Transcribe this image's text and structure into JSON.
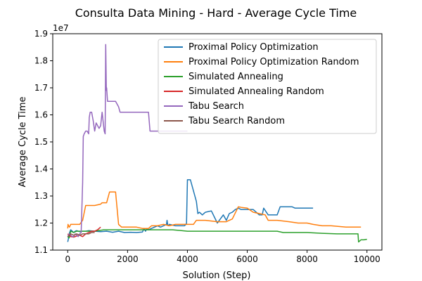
{
  "chart_data": {
    "type": "line",
    "title": "Consulta Data Mining - Hard - Average Cycle Time",
    "xlabel": "Solution (Step)",
    "ylabel": "Average Cycle Time",
    "y_offset_label": "1e7",
    "xlim": [
      -500,
      10500
    ],
    "ylim": [
      11000000,
      19000000
    ],
    "xticks": [
      0,
      2000,
      4000,
      6000,
      8000,
      10000
    ],
    "xtick_labels": [
      "0",
      "2000",
      "4000",
      "6000",
      "8000",
      "10000"
    ],
    "yticks": [
      11000000,
      12000000,
      13000000,
      14000000,
      15000000,
      16000000,
      17000000,
      18000000,
      19000000
    ],
    "ytick_labels": [
      "1.1",
      "1.2",
      "1.3",
      "1.4",
      "1.5",
      "1.6",
      "1.7",
      "1.8",
      "1.9"
    ],
    "grid": false,
    "legend_position": "upper right",
    "series": [
      {
        "name": "Proximal Policy Optimization",
        "color": "#1f77b4",
        "x": [
          0,
          20,
          50,
          80,
          100,
          150,
          200,
          250,
          300,
          400,
          500,
          600,
          700,
          900,
          1100,
          1300,
          1500,
          1700,
          1900,
          2100,
          2300,
          2500,
          2550,
          2600,
          2650,
          2700,
          2800,
          2900,
          3000,
          3100,
          3200,
          3300,
          3320,
          3340,
          3360,
          3400,
          3600,
          3800,
          3900,
          3950,
          3970,
          4000,
          4050,
          4100,
          4300,
          4350,
          4400,
          4500,
          4600,
          4800,
          5000,
          5200,
          5300,
          5400,
          5500,
          5600,
          5700,
          5800,
          6000,
          6200,
          6400,
          6500,
          6550,
          6700,
          7000,
          7100,
          7200,
          7500,
          7600,
          8000,
          8200
        ],
        "y": [
          11300000,
          11400000,
          11600000,
          11700000,
          11750000,
          11700000,
          11650000,
          11700000,
          11720000,
          11680000,
          11700000,
          11700000,
          11720000,
          11700000,
          11680000,
          11700000,
          11660000,
          11700000,
          11650000,
          11660000,
          11650000,
          11670000,
          11800000,
          11700000,
          11800000,
          11750000,
          11800000,
          11850000,
          11900000,
          11850000,
          11900000,
          11950000,
          12100000,
          11950000,
          11900000,
          11950000,
          11900000,
          11900000,
          11900000,
          11950000,
          12000000,
          13600000,
          13600000,
          13600000,
          12800000,
          12350000,
          12400000,
          12300000,
          12400000,
          12450000,
          12000000,
          12300000,
          12100000,
          12350000,
          12400000,
          12500000,
          12550000,
          12500000,
          12500000,
          12500000,
          12300000,
          12300000,
          12550000,
          12300000,
          12300000,
          12600000,
          12600000,
          12600000,
          12550000,
          12550000,
          12550000
        ]
      },
      {
        "name": "Proximal Policy Optimization Random",
        "color": "#ff7f0e",
        "x": [
          0,
          10,
          30,
          60,
          100,
          200,
          400,
          500,
          600,
          700,
          900,
          1100,
          1150,
          1300,
          1400,
          1500,
          1600,
          1700,
          1800,
          1850,
          2000,
          2300,
          2500,
          2700,
          2800,
          3000,
          3200,
          3400,
          3600,
          3800,
          4000,
          4200,
          4300,
          4400,
          4600,
          5000,
          5300,
          5500,
          5700,
          5800,
          6000,
          6200,
          6400,
          6600,
          6700,
          7000,
          7400,
          7700,
          8000,
          8200,
          8500,
          8800,
          9000,
          9300,
          9600,
          9800
        ],
        "y": [
          11800000,
          11950000,
          11900000,
          11850000,
          11950000,
          11950000,
          11950000,
          12100000,
          12650000,
          12650000,
          12650000,
          12700000,
          12750000,
          12750000,
          13150000,
          13150000,
          13150000,
          11950000,
          11850000,
          11850000,
          11850000,
          11850000,
          11800000,
          11800000,
          11900000,
          11900000,
          11950000,
          11900000,
          11950000,
          11950000,
          11950000,
          11950000,
          12100000,
          12100000,
          12100000,
          12050000,
          12050000,
          12150000,
          12600000,
          12580000,
          12550000,
          12400000,
          12350000,
          12300000,
          12100000,
          12100000,
          12050000,
          12000000,
          12000000,
          11950000,
          11900000,
          11900000,
          11880000,
          11850000,
          11850000,
          11850000
        ]
      },
      {
        "name": "Simulated Annealing",
        "color": "#2ca02c",
        "x": [
          0,
          50,
          100,
          200,
          300,
          400,
          600,
          900,
          1200,
          1500,
          2000,
          2500,
          3000,
          3500,
          4000,
          4500,
          5000,
          5500,
          6000,
          6500,
          7000,
          7200,
          7500,
          8000,
          8500,
          9000,
          9500,
          9700,
          9720,
          9800,
          9900,
          10000
        ],
        "y": [
          11500000,
          11450000,
          11700000,
          11650000,
          11700000,
          11700000,
          11700000,
          11700000,
          11750000,
          11750000,
          11750000,
          11750000,
          11750000,
          11750000,
          11700000,
          11700000,
          11700000,
          11700000,
          11700000,
          11700000,
          11700000,
          11650000,
          11650000,
          11650000,
          11620000,
          11600000,
          11600000,
          11600000,
          11300000,
          11380000,
          11380000,
          11400000
        ]
      },
      {
        "name": "Simulated Annealing Random",
        "color": "#d62728",
        "x": [
          0,
          50,
          100,
          200,
          300,
          400,
          500,
          600,
          700,
          800,
          900,
          1000,
          1050,
          1100
        ],
        "y": [
          11600000,
          11550000,
          11500000,
          11480000,
          11520000,
          11550000,
          11500000,
          11600000,
          11650000,
          11700000,
          11700000,
          11750000,
          11800000,
          11850000
        ]
      },
      {
        "name": "Tabu Search",
        "color": "#9467bd",
        "x": [
          0,
          50,
          100,
          150,
          200,
          250,
          300,
          350,
          400,
          450,
          500,
          520,
          550,
          600,
          650,
          700,
          720,
          750,
          800,
          850,
          900,
          950,
          1000,
          1050,
          1100,
          1150,
          1200,
          1220,
          1250,
          1270,
          1290,
          1300,
          1330,
          1360,
          1400,
          1500,
          1600,
          1700,
          1750,
          1800,
          2000,
          2200,
          2400,
          2600,
          2700,
          2750,
          2800,
          3000,
          3200,
          3400,
          3600,
          3800,
          4000
        ],
        "y": [
          11500000,
          11600000,
          11550000,
          11500000,
          11500000,
          11600000,
          11550000,
          11500000,
          11600000,
          11650000,
          13500000,
          15200000,
          15300000,
          15400000,
          15400000,
          15300000,
          15900000,
          16100000,
          16100000,
          15800000,
          15400000,
          15700000,
          15600000,
          15500000,
          15600000,
          16100000,
          15600000,
          15400000,
          15300000,
          18600000,
          16900000,
          17000000,
          16500000,
          16500000,
          16500000,
          16500000,
          16500000,
          16300000,
          16100000,
          16100000,
          16100000,
          16100000,
          16100000,
          16100000,
          16100000,
          15400000,
          15400000,
          15400000,
          15400000,
          15400000,
          15400000,
          15400000,
          15400000
        ]
      },
      {
        "name": "Tabu Search Random",
        "color": "#8c564b",
        "x": [
          0,
          100,
          200,
          300,
          400,
          500,
          600,
          700,
          800,
          900
        ],
        "y": [
          11500000,
          11600000,
          11550000,
          11600000,
          11550000,
          11600000,
          11600000,
          11600000,
          11650000,
          11650000
        ]
      }
    ]
  }
}
